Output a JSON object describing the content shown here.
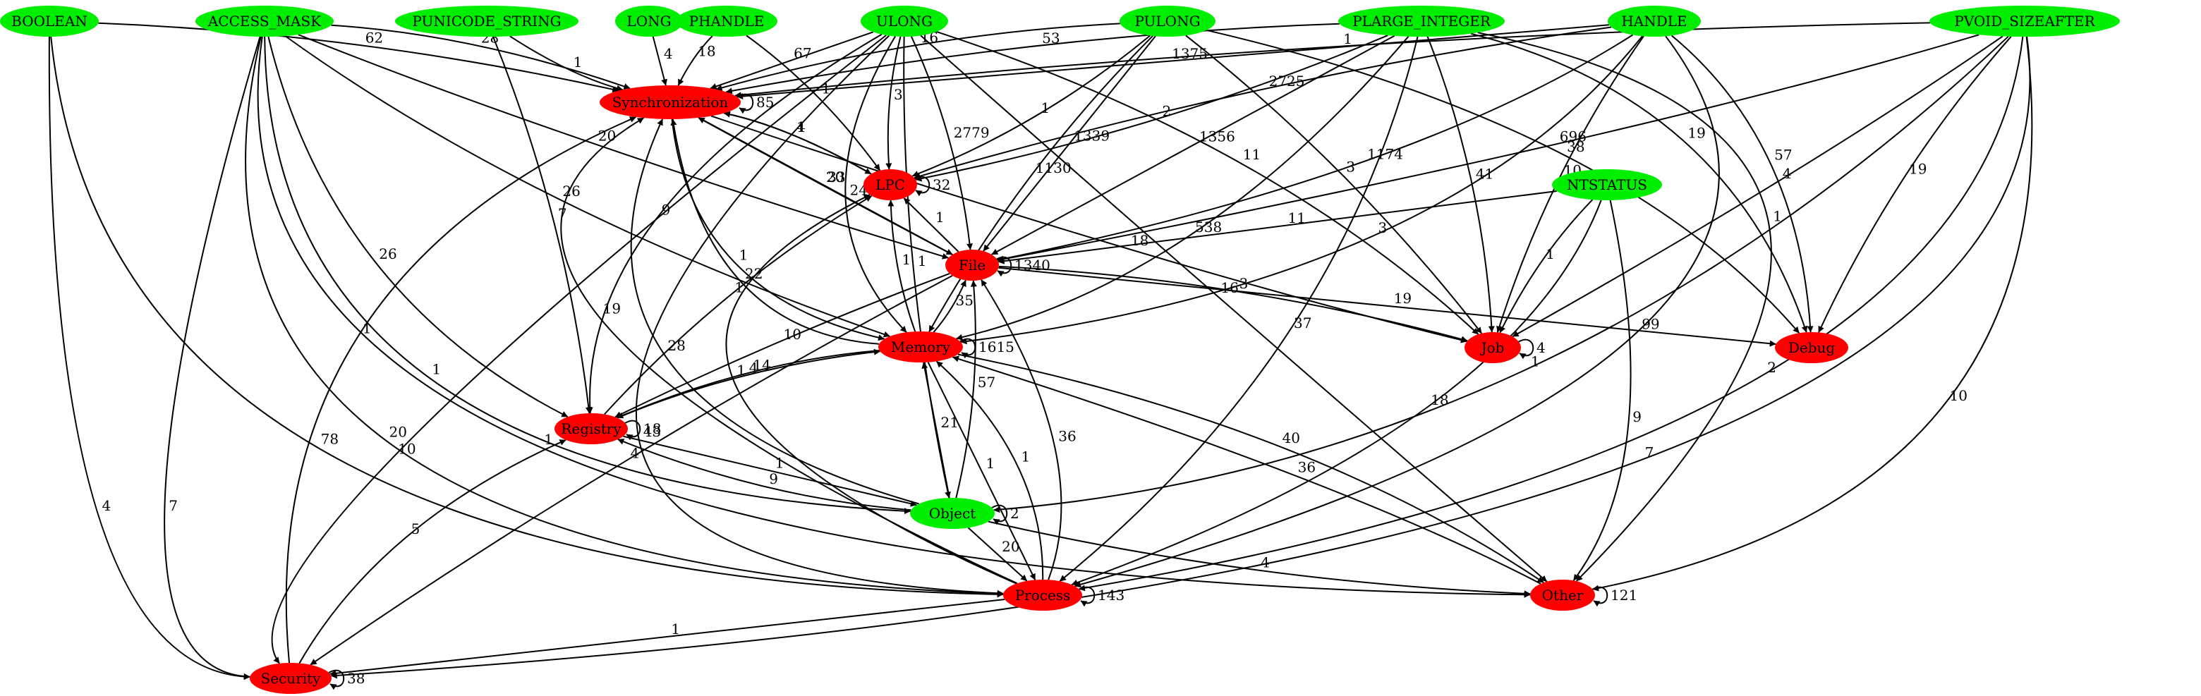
{
  "colors": {
    "type_node": "#00ee00",
    "category_node": "#ff0000",
    "edge": "#000000",
    "background": "#ffffff"
  },
  "nodes": [
    {
      "id": "BOOLEAN",
      "label": "BOOLEAN",
      "kind": "type"
    },
    {
      "id": "ACCESS_MASK",
      "label": "ACCESS_MASK",
      "kind": "type"
    },
    {
      "id": "PUNICODE_STRING",
      "label": "PUNICODE_STRING",
      "kind": "type"
    },
    {
      "id": "LONG",
      "label": "LONG",
      "kind": "type"
    },
    {
      "id": "PHANDLE",
      "label": "PHANDLE",
      "kind": "type"
    },
    {
      "id": "ULONG",
      "label": "ULONG",
      "kind": "type"
    },
    {
      "id": "PULONG",
      "label": "PULONG",
      "kind": "type"
    },
    {
      "id": "PLARGE_INTEGER",
      "label": "PLARGE_INTEGER",
      "kind": "type"
    },
    {
      "id": "HANDLE",
      "label": "HANDLE",
      "kind": "type"
    },
    {
      "id": "PVOID_SIZEAFTER",
      "label": "PVOID_SIZEAFTER",
      "kind": "type"
    },
    {
      "id": "NTSTATUS",
      "label": "NTSTATUS",
      "kind": "type"
    },
    {
      "id": "Object",
      "label": "Object",
      "kind": "type"
    },
    {
      "id": "Synchronization",
      "label": "Synchronization",
      "kind": "category"
    },
    {
      "id": "LPC",
      "label": "LPC",
      "kind": "category"
    },
    {
      "id": "File",
      "label": "File",
      "kind": "category"
    },
    {
      "id": "Memory",
      "label": "Memory",
      "kind": "category"
    },
    {
      "id": "Registry",
      "label": "Registry",
      "kind": "category"
    },
    {
      "id": "Job",
      "label": "Job",
      "kind": "category"
    },
    {
      "id": "Debug",
      "label": "Debug",
      "kind": "category"
    },
    {
      "id": "Process",
      "label": "Process",
      "kind": "category"
    },
    {
      "id": "Other",
      "label": "Other",
      "kind": "category"
    },
    {
      "id": "Security",
      "label": "Security",
      "kind": "category"
    }
  ],
  "edges": [
    {
      "from": "BOOLEAN",
      "to": "Synchronization",
      "label": "62"
    },
    {
      "from": "BOOLEAN",
      "to": "Security",
      "label": "4"
    },
    {
      "from": "BOOLEAN",
      "to": "Process",
      "label": "78"
    },
    {
      "from": "ACCESS_MASK",
      "to": "Synchronization",
      "label": "28"
    },
    {
      "from": "ACCESS_MASK",
      "to": "File",
      "label": "20"
    },
    {
      "from": "ACCESS_MASK",
      "to": "Memory",
      "label": "26"
    },
    {
      "from": "ACCESS_MASK",
      "to": "Registry",
      "label": "26"
    },
    {
      "from": "ACCESS_MASK",
      "to": "Object",
      "label": "1"
    },
    {
      "from": "ACCESS_MASK",
      "to": "Security",
      "label": "7"
    },
    {
      "from": "ACCESS_MASK",
      "to": "Process",
      "label": "20"
    },
    {
      "from": "ACCESS_MASK",
      "to": "Other",
      "label": "1"
    },
    {
      "from": "PUNICODE_STRING",
      "to": "Synchronization",
      "label": "1"
    },
    {
      "from": "PUNICODE_STRING",
      "to": "Registry",
      "label": "7"
    },
    {
      "from": "LONG",
      "to": "Synchronization",
      "label": "4"
    },
    {
      "from": "PHANDLE",
      "to": "Synchronization",
      "label": "18"
    },
    {
      "from": "PHANDLE",
      "to": "LPC",
      "label": "1"
    },
    {
      "from": "ULONG",
      "to": "Synchronization",
      "label": "67"
    },
    {
      "from": "ULONG",
      "to": "LPC",
      "label": "3"
    },
    {
      "from": "ULONG",
      "to": "File",
      "label": "2779"
    },
    {
      "from": "ULONG",
      "to": "Memory",
      "label": "2427"
    },
    {
      "from": "ULONG",
      "to": "Object",
      "label": "1"
    },
    {
      "from": "ULONG",
      "to": "Job",
      "label": "11"
    },
    {
      "from": "ULONG",
      "to": "Other",
      "label": "16"
    },
    {
      "from": "ULONG",
      "to": "Registry",
      "label": "9"
    },
    {
      "from": "ULONG",
      "to": "Security",
      "label": "10"
    },
    {
      "from": "ULONG",
      "to": "Process",
      "label": "43"
    },
    {
      "from": "PULONG",
      "to": "Synchronization",
      "label": "16"
    },
    {
      "from": "PULONG",
      "to": "LPC",
      "label": "1"
    },
    {
      "from": "PULONG",
      "to": "File",
      "label": "1339"
    },
    {
      "from": "PULONG",
      "to": "Memory",
      "label": "1130"
    },
    {
      "from": "PULONG",
      "to": "Job",
      "label": "3"
    },
    {
      "from": "PULONG",
      "to": "Debug",
      "label": "38"
    },
    {
      "from": "PLARGE_INTEGER",
      "to": "Synchronization",
      "label": "53"
    },
    {
      "from": "PLARGE_INTEGER",
      "to": "LPC",
      "label": "2"
    },
    {
      "from": "PLARGE_INTEGER",
      "to": "File",
      "label": "1356"
    },
    {
      "from": "PLARGE_INTEGER",
      "to": "Memory",
      "label": "538"
    },
    {
      "from": "PLARGE_INTEGER",
      "to": "Job",
      "label": "41"
    },
    {
      "from": "PLARGE_INTEGER",
      "to": "Process",
      "label": "37"
    },
    {
      "from": "PLARGE_INTEGER",
      "to": "Debug",
      "label": "19"
    },
    {
      "from": "PLARGE_INTEGER",
      "to": "Other",
      "label": "1"
    },
    {
      "from": "HANDLE",
      "to": "Synchronization",
      "label": "1375"
    },
    {
      "from": "HANDLE",
      "to": "LPC",
      "label": "2725"
    },
    {
      "from": "HANDLE",
      "to": "File",
      "label": "1174"
    },
    {
      "from": "HANDLE",
      "to": "Memory",
      "label": "3"
    },
    {
      "from": "HANDLE",
      "to": "Job",
      "label": "10"
    },
    {
      "from": "HANDLE",
      "to": "Debug",
      "label": "57"
    },
    {
      "from": "HANDLE",
      "to": "Process",
      "label": "99"
    },
    {
      "from": "PVOID_SIZEAFTER",
      "to": "Synchronization",
      "label": "1"
    },
    {
      "from": "PVOID_SIZEAFTER",
      "to": "File",
      "label": "696"
    },
    {
      "from": "PVOID_SIZEAFTER",
      "to": "Job",
      "label": "4"
    },
    {
      "from": "PVOID_SIZEAFTER",
      "to": "Debug",
      "label": "19"
    },
    {
      "from": "PVOID_SIZEAFTER",
      "to": "Object",
      "label": "1"
    },
    {
      "from": "PVOID_SIZEAFTER",
      "to": "Process",
      "label": "2"
    },
    {
      "from": "PVOID_SIZEAFTER",
      "to": "Other",
      "label": "10"
    },
    {
      "from": "PVOID_SIZEAFTER",
      "to": "Security",
      "label": "7"
    },
    {
      "from": "NTSTATUS",
      "to": "File",
      "label": "11"
    },
    {
      "from": "NTSTATUS",
      "to": "Job",
      "label": "1"
    },
    {
      "from": "NTSTATUS",
      "to": "Other",
      "label": "9"
    },
    {
      "from": "NTSTATUS",
      "to": "Process",
      "label": "18"
    },
    {
      "from": "Synchronization",
      "to": "Synchronization",
      "label": "85",
      "self": true
    },
    {
      "from": "Synchronization",
      "to": "LPC",
      "label": "4"
    },
    {
      "from": "Synchronization",
      "to": "File",
      "label": "33"
    },
    {
      "from": "Synchronization",
      "to": "Memory",
      "label": "1"
    },
    {
      "from": "Synchronization",
      "to": "Job",
      "label": "18"
    },
    {
      "from": "LPC",
      "to": "LPC",
      "label": "32",
      "self": true
    },
    {
      "from": "LPC",
      "to": "Synchronization",
      "label": "1"
    },
    {
      "from": "File",
      "to": "File",
      "label": "1340",
      "self": true
    },
    {
      "from": "File",
      "to": "LPC",
      "label": "1"
    },
    {
      "from": "File",
      "to": "Synchronization",
      "label": "20"
    },
    {
      "from": "File",
      "to": "Job",
      "label": "3"
    },
    {
      "from": "File",
      "to": "Debug",
      "label": "19"
    },
    {
      "from": "File",
      "to": "Registry",
      "label": "10"
    },
    {
      "from": "File",
      "to": "Security",
      "label": "4"
    },
    {
      "from": "Memory",
      "to": "Memory",
      "label": "1615",
      "self": true
    },
    {
      "from": "Memory",
      "to": "File",
      "label": "35"
    },
    {
      "from": "Memory",
      "to": "LPC",
      "label": "1"
    },
    {
      "from": "Memory",
      "to": "Synchronization",
      "label": "22"
    },
    {
      "from": "Memory",
      "to": "Registry",
      "label": "14"
    },
    {
      "from": "Memory",
      "to": "Other",
      "label": "40"
    },
    {
      "from": "Memory",
      "to": "Process",
      "label": "1"
    },
    {
      "from": "Registry",
      "to": "Registry",
      "label": "18",
      "self": true
    },
    {
      "from": "Registry",
      "to": "LPC",
      "label": "1"
    },
    {
      "from": "Registry",
      "to": "Object",
      "label": "1"
    },
    {
      "from": "Registry",
      "to": "Memory",
      "label": "4"
    },
    {
      "from": "Object",
      "to": "Object",
      "label": "2",
      "self": true
    },
    {
      "from": "Object",
      "to": "Memory",
      "label": "21"
    },
    {
      "from": "Object",
      "to": "File",
      "label": "57"
    },
    {
      "from": "Object",
      "to": "Registry",
      "label": "9"
    },
    {
      "from": "Object",
      "to": "Process",
      "label": "20"
    },
    {
      "from": "Object",
      "to": "Other",
      "label": "4"
    },
    {
      "from": "Object",
      "to": "Synchronization",
      "label": "28"
    },
    {
      "from": "Process",
      "to": "Process",
      "label": "143",
      "self": true
    },
    {
      "from": "Process",
      "to": "File",
      "label": "36"
    },
    {
      "from": "Process",
      "to": "Memory",
      "label": "1"
    },
    {
      "from": "Process",
      "to": "Security",
      "label": "1"
    },
    {
      "from": "Process",
      "to": "LPC",
      "label": "1"
    },
    {
      "from": "Process",
      "to": "Synchronization",
      "label": "19"
    },
    {
      "from": "Other",
      "to": "Other",
      "label": "121",
      "self": true
    },
    {
      "from": "Other",
      "to": "Memory",
      "label": "36"
    },
    {
      "from": "Job",
      "to": "Job",
      "label": "4",
      "self": true
    },
    {
      "from": "Security",
      "to": "Security",
      "label": "38",
      "self": true
    },
    {
      "from": "Security",
      "to": "Synchronization",
      "label": "1"
    },
    {
      "from": "Security",
      "to": "Registry",
      "label": "5"
    }
  ]
}
